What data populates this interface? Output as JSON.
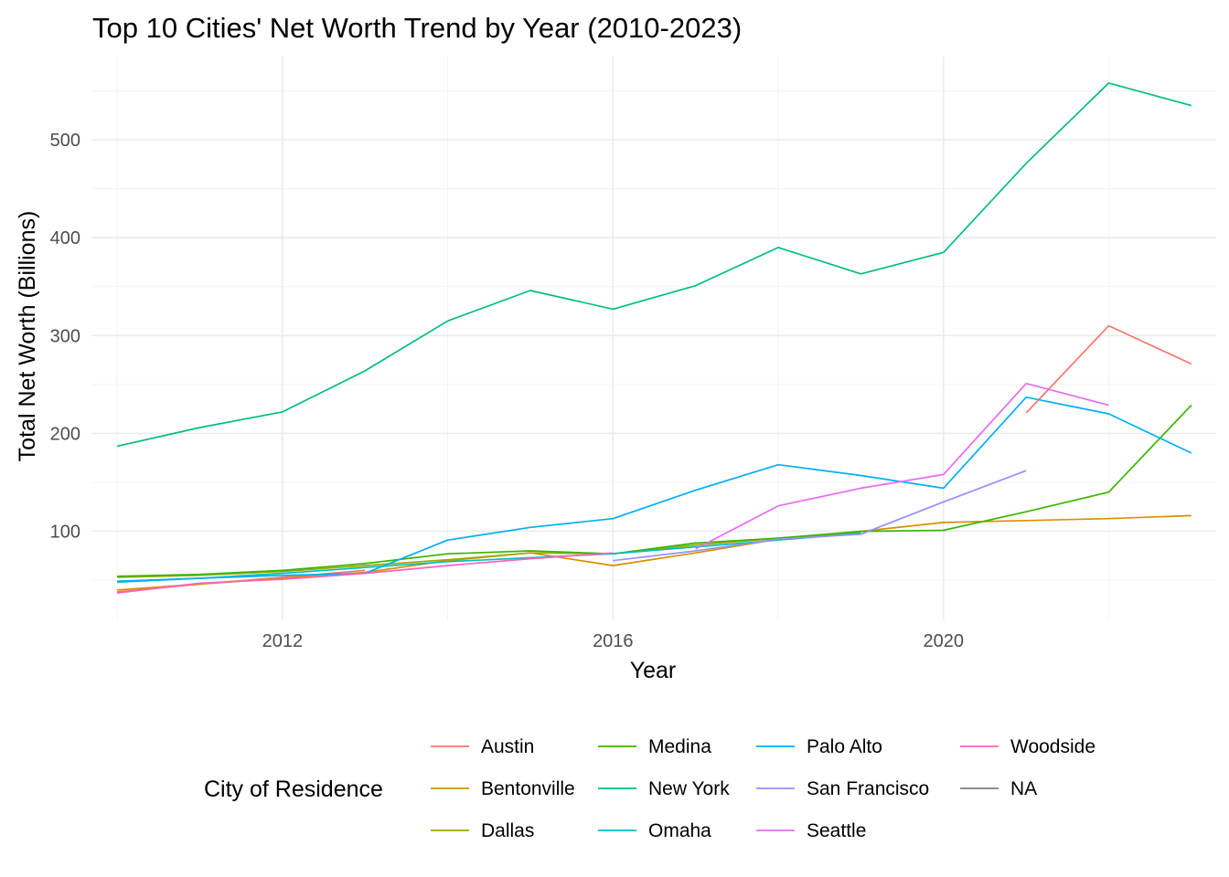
{
  "chart_data": {
    "type": "line",
    "title": "Top 10 Cities' Net Worth Trend by Year (2010-2023)",
    "xlabel": "Year",
    "ylabel": "Total Net Worth (Billions)",
    "xlim": [
      2009.7,
      2023.3
    ],
    "ylim": [
      10,
      585
    ],
    "x_major_ticks": [
      2012,
      2016,
      2020
    ],
    "x_minor_ticks": [
      2010,
      2014,
      2018,
      2022
    ],
    "y_major_ticks": [
      100,
      200,
      300,
      400,
      500
    ],
    "y_minor_ticks": [
      50,
      150,
      250,
      350,
      450,
      550
    ],
    "x_tick_labels": [
      "2012",
      "2016",
      "2020"
    ],
    "y_tick_labels": [
      "100",
      "200",
      "300",
      "400",
      "500"
    ],
    "grid": true,
    "legend": {
      "title": "City of Residence",
      "position": "bottom",
      "columns": [
        [
          "Austin",
          "Bentonville",
          "Dallas"
        ],
        [
          "Medina",
          "New York",
          "Omaha"
        ],
        [
          "Palo Alto",
          "San Francisco",
          "Seattle"
        ],
        [
          "Woodside",
          "NA"
        ]
      ]
    },
    "series": [
      {
        "name": "Austin",
        "color": "#F8766D",
        "points": [
          [
            2010,
            38
          ],
          [
            2011,
            46
          ],
          [
            2012,
            53
          ],
          [
            2013,
            60
          ],
          [
            2021,
            221
          ],
          [
            2022,
            310
          ],
          [
            2023,
            271
          ]
        ]
      },
      {
        "name": "Bentonville",
        "color": "#D89000",
        "points": [
          [
            2010,
            40
          ],
          [
            2011,
            46
          ],
          [
            2012,
            52
          ],
          [
            2013,
            58
          ],
          [
            2014,
            70
          ],
          [
            2015,
            78
          ],
          [
            2016,
            65
          ],
          [
            2017,
            78
          ],
          [
            2018,
            92
          ],
          [
            2019,
            100
          ],
          [
            2020,
            109
          ],
          [
            2021,
            111
          ],
          [
            2022,
            113
          ],
          [
            2023,
            116
          ]
        ]
      },
      {
        "name": "Dallas",
        "color": "#A3A500",
        "points": [
          [
            2010,
            53
          ],
          [
            2011,
            55
          ],
          [
            2012,
            59
          ],
          [
            2013,
            65
          ],
          [
            2014,
            71
          ],
          [
            2015,
            78
          ],
          [
            2016,
            77
          ],
          [
            2017,
            86
          ],
          [
            2018,
            93
          ],
          [
            2019,
            99
          ]
        ]
      },
      {
        "name": "Medina",
        "color": "#39B600",
        "points": [
          [
            2010,
            54
          ],
          [
            2011,
            56
          ],
          [
            2012,
            60
          ],
          [
            2013,
            67
          ],
          [
            2014,
            77
          ],
          [
            2015,
            80
          ],
          [
            2016,
            77
          ],
          [
            2017,
            88
          ],
          [
            2018,
            93
          ],
          [
            2019,
            100
          ],
          [
            2020,
            101
          ],
          [
            2021,
            120
          ],
          [
            2022,
            140
          ],
          [
            2023,
            229
          ]
        ]
      },
      {
        "name": "New York",
        "color": "#00BF7D",
        "points": [
          [
            2010,
            187
          ],
          [
            2011,
            206
          ],
          [
            2012,
            222
          ],
          [
            2013,
            264
          ],
          [
            2014,
            315
          ],
          [
            2015,
            346
          ],
          [
            2016,
            327
          ],
          [
            2017,
            351
          ],
          [
            2018,
            390
          ],
          [
            2019,
            363
          ],
          [
            2020,
            385
          ],
          [
            2021,
            476
          ],
          [
            2022,
            558
          ],
          [
            2023,
            535
          ]
        ]
      },
      {
        "name": "Omaha",
        "color": "#00BFC4",
        "points": [
          [
            2010,
            48
          ],
          [
            2011,
            52
          ],
          [
            2012,
            57
          ],
          [
            2013,
            63
          ],
          [
            2014,
            69
          ],
          [
            2015,
            73
          ],
          [
            2016,
            77
          ],
          [
            2017,
            84
          ],
          [
            2018,
            91
          ],
          [
            2019,
            98
          ]
        ]
      },
      {
        "name": "Palo Alto",
        "color": "#00B0F6",
        "points": [
          [
            2010,
            49
          ],
          [
            2011,
            52
          ],
          [
            2012,
            55
          ],
          [
            2013,
            57
          ],
          [
            2014,
            91
          ],
          [
            2015,
            104
          ],
          [
            2016,
            113
          ],
          [
            2017,
            142
          ],
          [
            2018,
            168
          ],
          [
            2019,
            157
          ],
          [
            2020,
            144
          ],
          [
            2021,
            237
          ],
          [
            2022,
            220
          ],
          [
            2023,
            180
          ]
        ]
      },
      {
        "name": "San Francisco",
        "color": "#9590FF",
        "points": [
          [
            2016,
            70
          ],
          [
            2017,
            80
          ],
          [
            2018,
            92
          ],
          [
            2019,
            97
          ],
          [
            2020,
            130
          ],
          [
            2021,
            162
          ]
        ]
      },
      {
        "name": "Seattle",
        "color": "#E76BF3",
        "points": [
          [
            2017,
            82
          ],
          [
            2018,
            126
          ],
          [
            2019,
            144
          ],
          [
            2020,
            158
          ],
          [
            2021,
            251
          ],
          [
            2022,
            229
          ]
        ]
      },
      {
        "name": "Woodside",
        "color": "#FF62BC",
        "points": [
          [
            2010,
            37
          ],
          [
            2011,
            47
          ],
          [
            2012,
            51
          ],
          [
            2013,
            57
          ],
          [
            2014,
            65
          ],
          [
            2015,
            72
          ],
          [
            2016,
            78
          ]
        ]
      },
      {
        "name": "NA",
        "color": "#7F7F7F",
        "points": []
      }
    ]
  }
}
